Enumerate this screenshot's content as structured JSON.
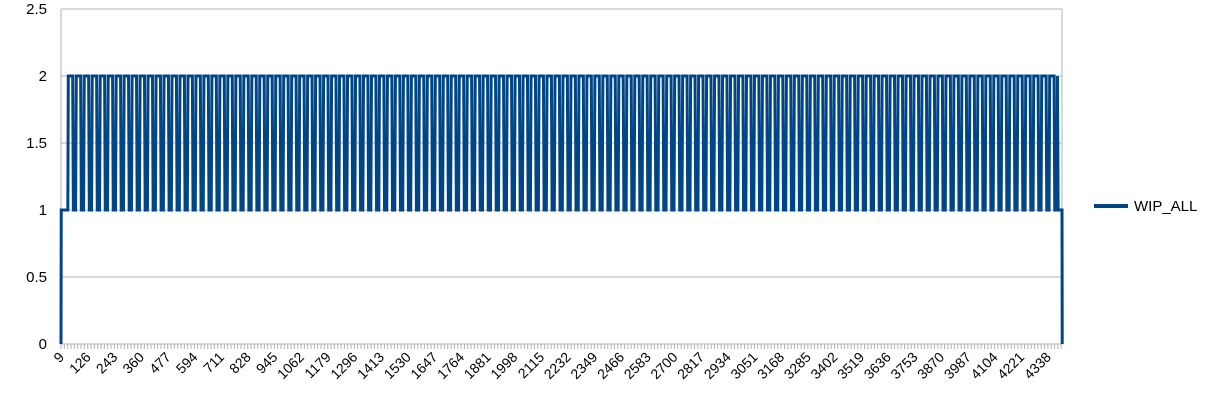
{
  "chart_data": {
    "type": "line",
    "title": "",
    "xlabel": "",
    "ylabel": "",
    "ylim": [
      0,
      2.5
    ],
    "y_ticks": [
      "0",
      "0.5",
      "1",
      "1.5",
      "2",
      "2.5"
    ],
    "x_ticks": [
      "9",
      "126",
      "243",
      "360",
      "477",
      "594",
      "711",
      "828",
      "945",
      "1062",
      "1179",
      "1296",
      "1413",
      "1530",
      "1647",
      "1764",
      "1881",
      "1998",
      "2115",
      "2232",
      "2349",
      "2466",
      "2583",
      "2700",
      "2817",
      "2934",
      "3051",
      "3168",
      "3285",
      "3402",
      "3519",
      "3636",
      "3753",
      "3870",
      "3987",
      "4104",
      "4221",
      "4338"
    ],
    "x_range": [
      9,
      4400
    ],
    "grid": "horizontal",
    "legend_position": "right",
    "series": [
      {
        "name": "WIP_ALL",
        "color": "#004586",
        "description_of_pattern": "square wave",
        "points": [
          [
            9,
            0
          ],
          [
            10,
            1
          ],
          [
            40,
            1
          ],
          [
            41,
            2
          ],
          [
            4380,
            2
          ],
          [
            4381,
            1
          ],
          [
            4400,
            1
          ],
          [
            4401,
            0
          ]
        ],
        "pulse_start": 41,
        "pulse_end": 4380,
        "pulse_period": 35.0,
        "low_value": 1,
        "high_value": 2
      }
    ]
  }
}
